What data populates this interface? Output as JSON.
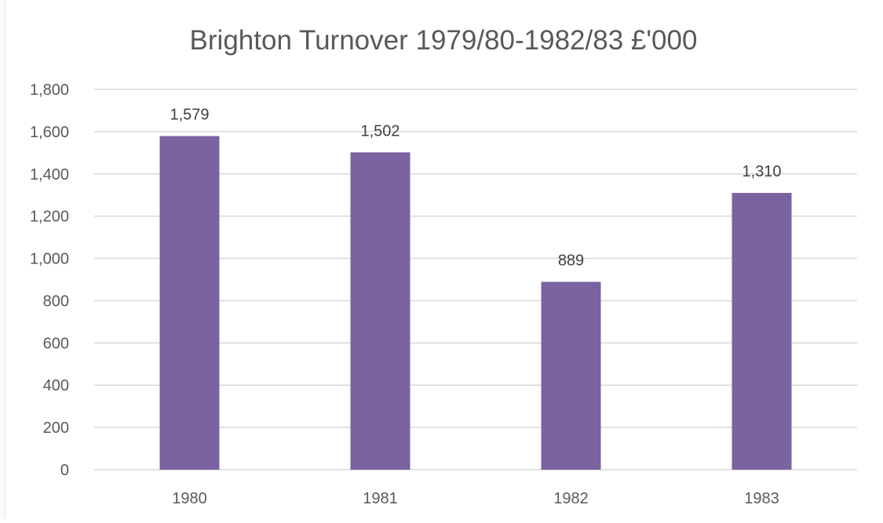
{
  "chart_data": {
    "type": "bar",
    "title": "Brighton Turnover 1979/80-1982/83 £'000",
    "xlabel": "",
    "ylabel": "",
    "categories": [
      "1980",
      "1981",
      "1982",
      "1983"
    ],
    "values": [
      1579,
      1502,
      889,
      1310
    ],
    "value_labels": [
      "1,579",
      "1,502",
      "889",
      "1,310"
    ],
    "ylim": [
      0,
      1800
    ],
    "y_ticks": [
      0,
      200,
      400,
      600,
      800,
      1000,
      1200,
      1400,
      1600,
      1800
    ],
    "y_tick_labels": [
      "0",
      "200",
      "400",
      "600",
      "800",
      "1,000",
      "1,200",
      "1,400",
      "1,600",
      "1,800"
    ],
    "grid": true,
    "legend": "none",
    "bar_color": "#7b62a0",
    "grid_color": "#d9d9d9",
    "text_color": "#595959"
  }
}
